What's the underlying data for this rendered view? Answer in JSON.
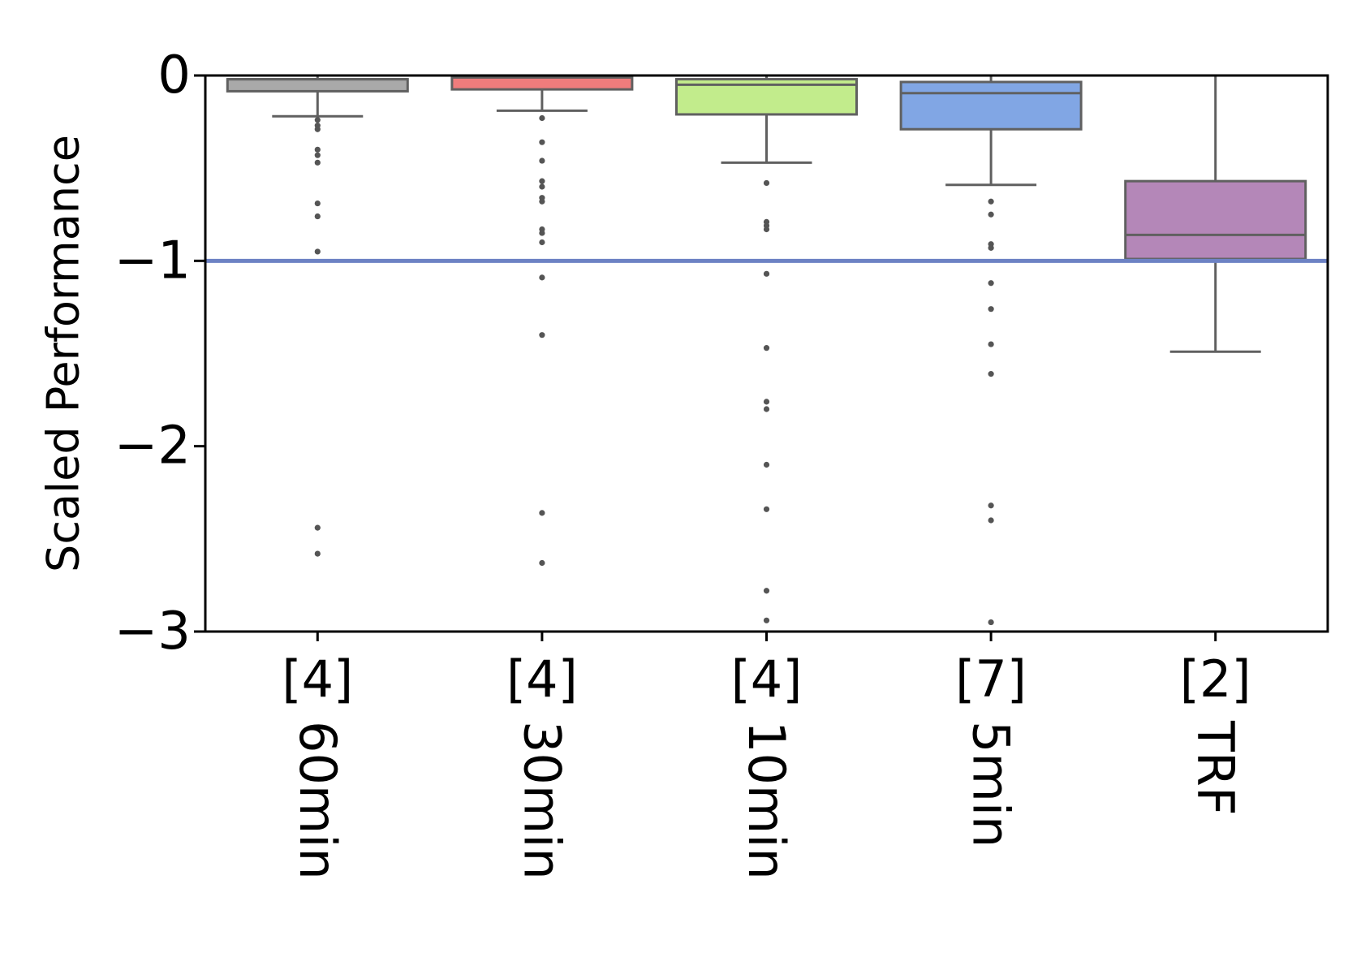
{
  "chart_data": {
    "type": "box",
    "ylabel": "Scaled Performance",
    "xlabel": "",
    "title": "",
    "ylim": [
      -3,
      0
    ],
    "yticks": [
      0,
      -1,
      -2,
      -3
    ],
    "ytick_labels": [
      "0",
      "−1",
      "−2",
      "−3"
    ],
    "reference_line": {
      "y": -1,
      "color": "#6d82c4"
    },
    "grid": false,
    "categories": [
      {
        "ref": "[4]",
        "label": "60min",
        "color": "#a9a9a9",
        "whisker_high": 0,
        "q3": -0.02,
        "median": -0.02,
        "q1": -0.085,
        "whisker_low": -0.22,
        "outliers": [
          -0.24,
          -0.27,
          -0.29,
          -0.4,
          -0.43,
          -0.47,
          -0.69,
          -0.76,
          -0.95,
          -2.44,
          -2.58
        ]
      },
      {
        "ref": "[4]",
        "label": "30min",
        "color": "#ef7c7c",
        "whisker_high": 0,
        "q3": -0.01,
        "median": -0.01,
        "q1": -0.075,
        "whisker_low": -0.19,
        "outliers": [
          -0.23,
          -0.36,
          -0.46,
          -0.57,
          -0.6,
          -0.66,
          -0.68,
          -0.83,
          -0.85,
          -0.9,
          -1.09,
          -1.4,
          -2.36,
          -2.63
        ]
      },
      {
        "ref": "[4]",
        "label": "10min",
        "color": "#c2ec8c",
        "whisker_high": 0,
        "q3": -0.02,
        "median": -0.05,
        "q1": -0.21,
        "whisker_low": -0.47,
        "outliers": [
          -0.58,
          -0.79,
          -0.81,
          -0.83,
          -1.07,
          -1.47,
          -1.76,
          -1.8,
          -2.1,
          -2.34,
          -2.78,
          -2.94
        ]
      },
      {
        "ref": "[7]",
        "label": "5min",
        "color": "#81a6e4",
        "whisker_high": 0,
        "q3": -0.035,
        "median": -0.095,
        "q1": -0.29,
        "whisker_low": -0.59,
        "outliers": [
          -0.68,
          -0.75,
          -0.91,
          -0.93,
          -1.12,
          -1.26,
          -1.45,
          -1.61,
          -2.32,
          -2.4,
          -2.95
        ]
      },
      {
        "ref": "[2]",
        "label": "TRF",
        "color": "#b487b8",
        "whisker_high": 0,
        "q3": -0.57,
        "median": -0.86,
        "q1": -0.99,
        "whisker_low": -1.49,
        "outliers": []
      }
    ]
  }
}
